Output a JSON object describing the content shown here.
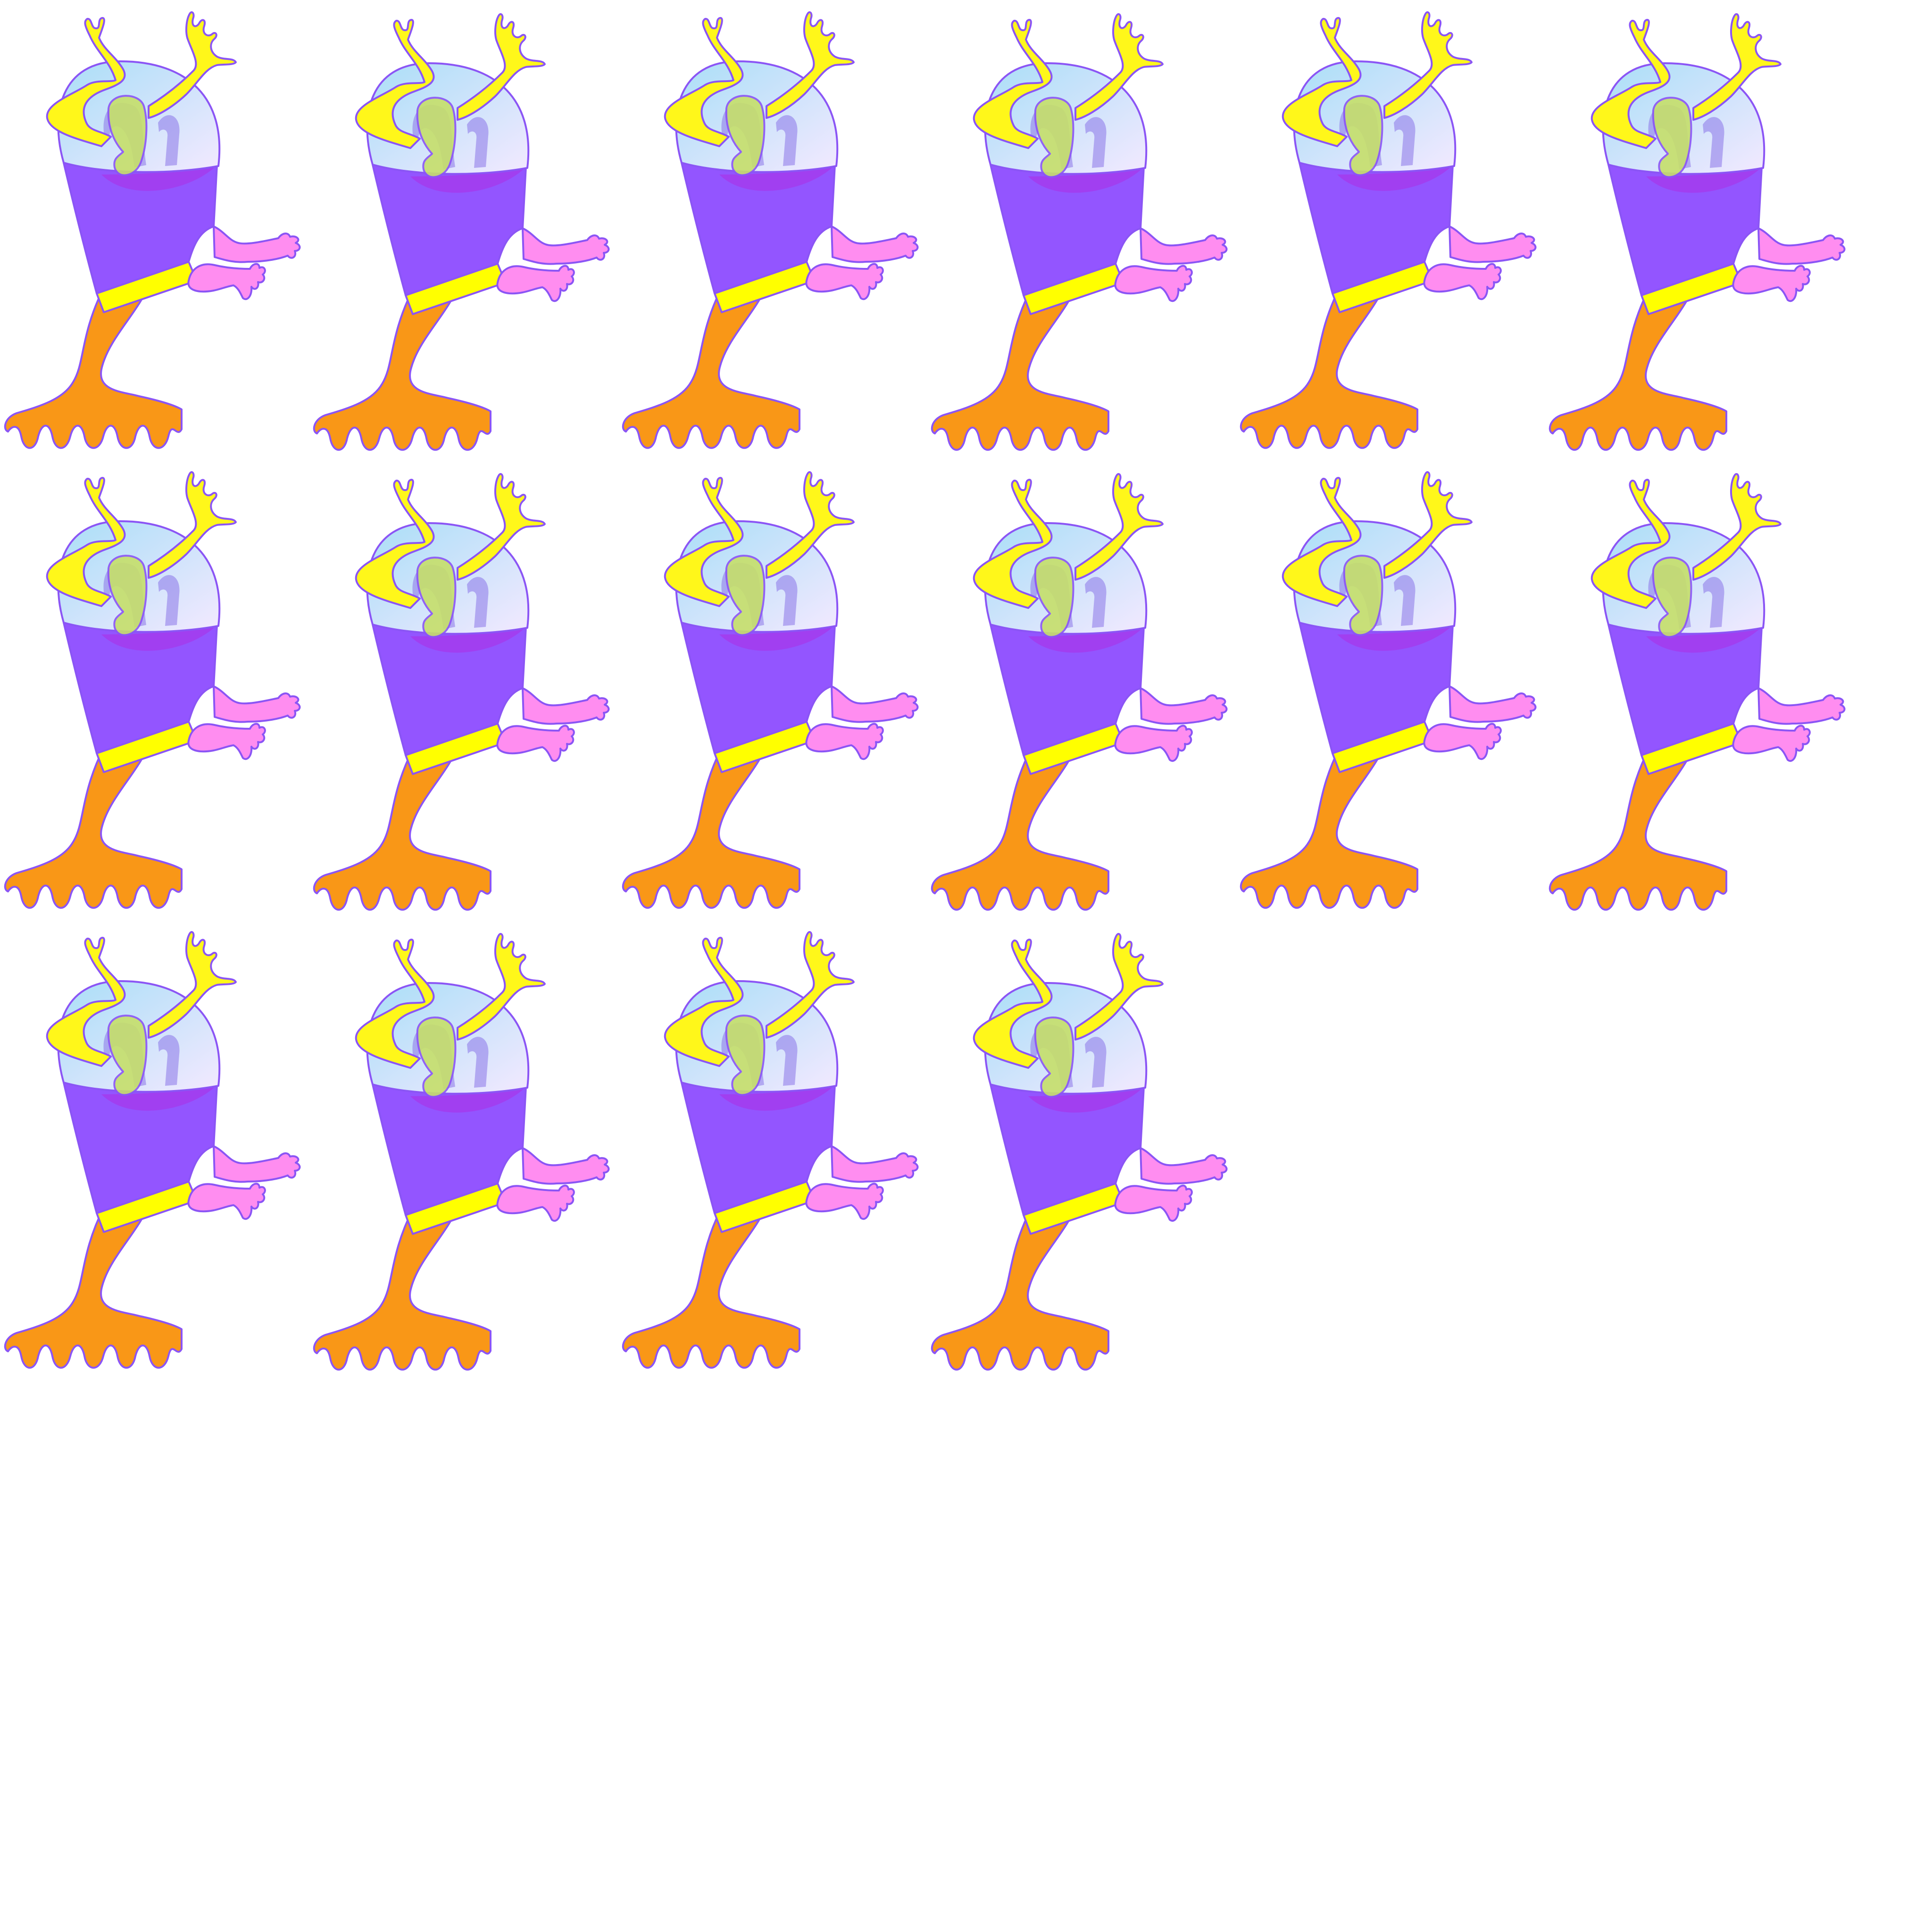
{
  "sprite_sheet": {
    "frame_count": 16,
    "columns": 6,
    "rows": 3,
    "background": "#ffffff",
    "character": "alien-with-glass-dome-helmet",
    "palette": {
      "outline": "#8b55f5",
      "helmet_glass_top": "#a9def7",
      "helmet_glass_bottom": "#f3e9ff",
      "head": "#c6df6a",
      "body": "#9355ff",
      "body_shadow": "#a13ff0",
      "antenna": "#fff71a",
      "arm": "#ff8df0",
      "belt": "#ffff00",
      "leg": "#f99717"
    }
  }
}
